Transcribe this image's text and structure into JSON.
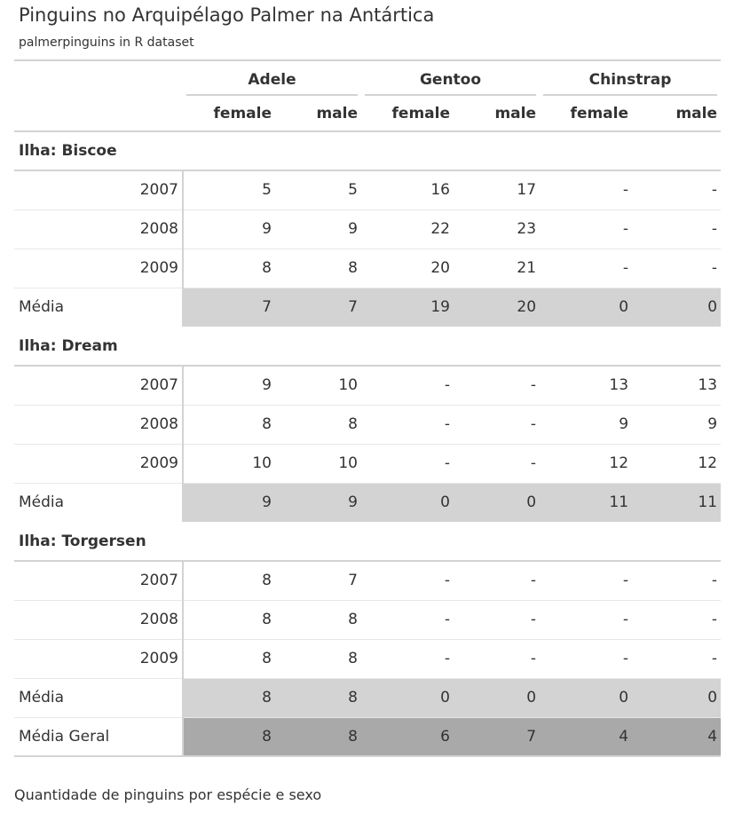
{
  "header": {
    "title": "Pinguins no Arquipélago Palmer na Antártica",
    "subtitle": "palmerpinguins in R dataset"
  },
  "columns": {
    "species": [
      "Adele",
      "Gentoo",
      "Chinstrap"
    ],
    "sexes": [
      "female",
      "male"
    ]
  },
  "groups": [
    {
      "label": "Ilha: Biscoe",
      "rows": [
        {
          "year": "2007",
          "values": [
            "5",
            "5",
            "16",
            "17",
            "-",
            "-"
          ]
        },
        {
          "year": "2008",
          "values": [
            "9",
            "9",
            "22",
            "23",
            "-",
            "-"
          ]
        },
        {
          "year": "2009",
          "values": [
            "8",
            "8",
            "20",
            "21",
            "-",
            "-"
          ]
        }
      ],
      "summary": {
        "label": "Média",
        "values": [
          "7",
          "7",
          "19",
          "20",
          "0",
          "0"
        ]
      }
    },
    {
      "label": "Ilha: Dream",
      "rows": [
        {
          "year": "2007",
          "values": [
            "9",
            "10",
            "-",
            "-",
            "13",
            "13"
          ]
        },
        {
          "year": "2008",
          "values": [
            "8",
            "8",
            "-",
            "-",
            "9",
            "9"
          ]
        },
        {
          "year": "2009",
          "values": [
            "10",
            "10",
            "-",
            "-",
            "12",
            "12"
          ]
        }
      ],
      "summary": {
        "label": "Média",
        "values": [
          "9",
          "9",
          "0",
          "0",
          "11",
          "11"
        ]
      }
    },
    {
      "label": "Ilha: Torgersen",
      "rows": [
        {
          "year": "2007",
          "values": [
            "8",
            "7",
            "-",
            "-",
            "-",
            "-"
          ]
        },
        {
          "year": "2008",
          "values": [
            "8",
            "8",
            "-",
            "-",
            "-",
            "-"
          ]
        },
        {
          "year": "2009",
          "values": [
            "8",
            "8",
            "-",
            "-",
            "-",
            "-"
          ]
        }
      ],
      "summary": {
        "label": "Média",
        "values": [
          "8",
          "8",
          "0",
          "0",
          "0",
          "0"
        ]
      }
    }
  ],
  "grand_summary": {
    "label": "Média Geral",
    "values": [
      "8",
      "8",
      "6",
      "7",
      "4",
      "4"
    ]
  },
  "caption": "Quantidade de pinguins por espécie e sexo",
  "colors": {
    "summary_fill": "#d3d3d3",
    "grand_summary_fill": "#a9a9a9",
    "rule": "#d3d3d3",
    "text": "#333333"
  }
}
